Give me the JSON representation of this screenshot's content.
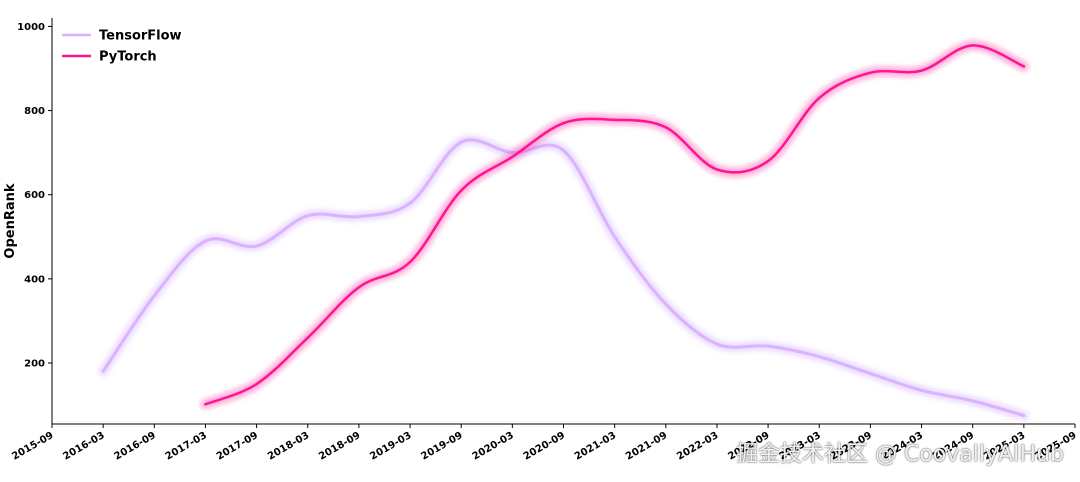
{
  "chart_data": {
    "type": "line",
    "title": "",
    "xlabel": "",
    "ylabel": "OpenRank",
    "xlim": [
      "2015-09",
      "2025-09"
    ],
    "ylim": [
      55,
      1020
    ],
    "y_ticks": [
      200,
      400,
      600,
      800,
      1000
    ],
    "x_ticks": [
      "2015-09",
      "2016-03",
      "2016-09",
      "2017-03",
      "2017-09",
      "2018-03",
      "2018-09",
      "2019-03",
      "2019-09",
      "2020-03",
      "2020-09",
      "2021-03",
      "2021-09",
      "2022-03",
      "2022-09",
      "2023-03",
      "2023-09",
      "2024-03",
      "2024-09",
      "2025-03",
      "2025-09"
    ],
    "legend_position": "top-left",
    "grid": false,
    "series": [
      {
        "name": "TensorFlow",
        "color": "#d9b3ff",
        "points": [
          [
            "2016-03",
            180
          ],
          [
            "2016-09",
            360
          ],
          [
            "2017-03",
            490
          ],
          [
            "2017-09",
            478
          ],
          [
            "2018-03",
            550
          ],
          [
            "2018-09",
            548
          ],
          [
            "2019-03",
            580
          ],
          [
            "2019-09",
            725
          ],
          [
            "2020-03",
            700
          ],
          [
            "2020-09",
            705
          ],
          [
            "2021-03",
            500
          ],
          [
            "2021-09",
            340
          ],
          [
            "2022-03",
            245
          ],
          [
            "2022-09",
            240
          ],
          [
            "2023-03",
            215
          ],
          [
            "2023-09",
            175
          ],
          [
            "2024-03",
            135
          ],
          [
            "2024-09",
            110
          ],
          [
            "2025-03",
            75
          ]
        ]
      },
      {
        "name": "PyTorch",
        "color": "#ff1493",
        "points": [
          [
            "2017-03",
            102
          ],
          [
            "2017-09",
            150
          ],
          [
            "2018-03",
            260
          ],
          [
            "2018-09",
            380
          ],
          [
            "2019-03",
            440
          ],
          [
            "2019-09",
            610
          ],
          [
            "2020-03",
            690
          ],
          [
            "2020-09",
            770
          ],
          [
            "2021-03",
            778
          ],
          [
            "2021-09",
            760
          ],
          [
            "2022-03",
            660
          ],
          [
            "2022-09",
            680
          ],
          [
            "2023-03",
            830
          ],
          [
            "2023-09",
            890
          ],
          [
            "2024-03",
            895
          ],
          [
            "2024-09",
            955
          ],
          [
            "2025-03",
            905
          ]
        ]
      }
    ]
  },
  "watermark": "掘金技术社区 @ CoovallyAIHub"
}
